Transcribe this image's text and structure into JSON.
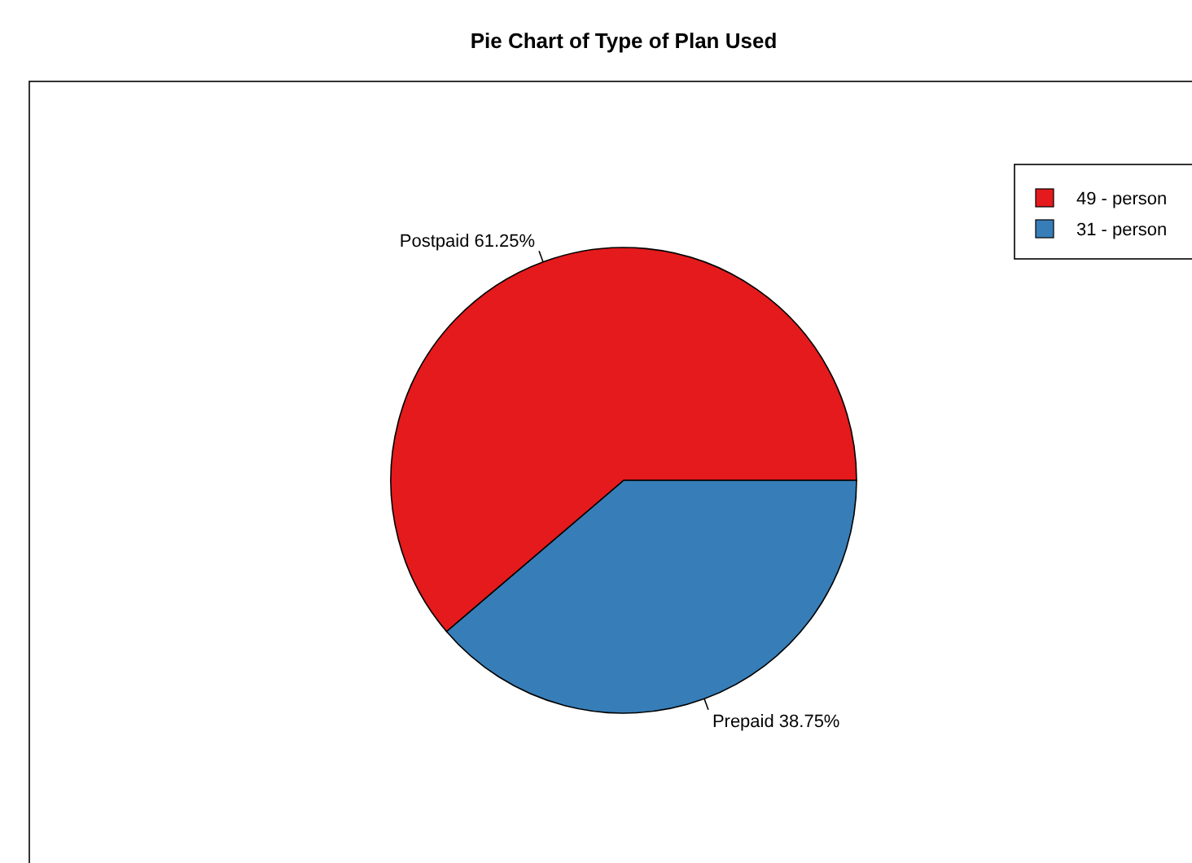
{
  "chart_data": {
    "type": "pie",
    "title": "Pie Chart of Type of Plan Used",
    "categories": [
      "49 - person",
      "31 - person"
    ],
    "values": [
      49,
      31
    ],
    "value_labels": [
      "Postpaid 61.25%",
      "Prepaid 38.75%"
    ],
    "colors": [
      "#e41a1c",
      "#377eb8"
    ],
    "legend": "top right"
  }
}
